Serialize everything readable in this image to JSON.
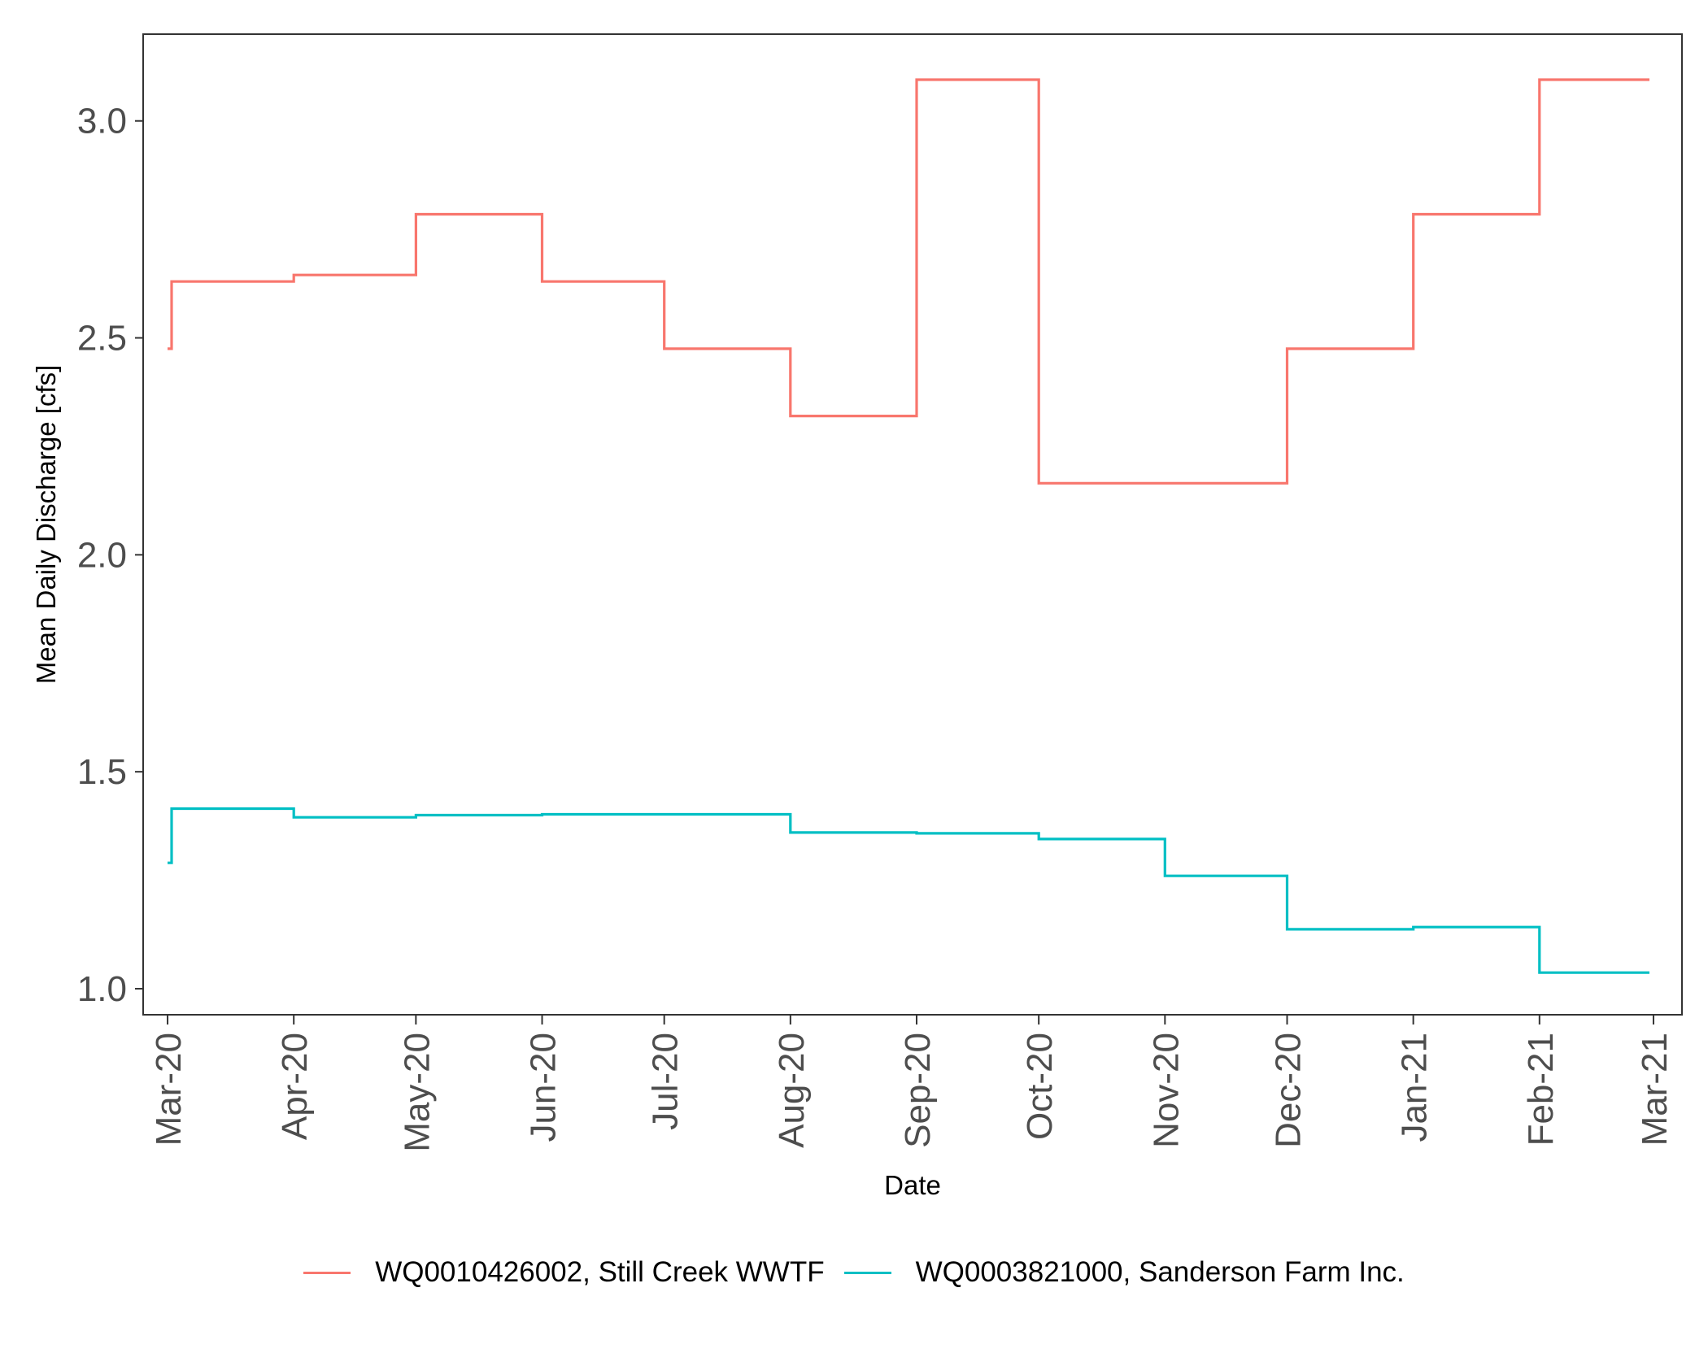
{
  "chart_data": {
    "type": "line",
    "step": true,
    "xlabel": "Date",
    "ylabel": "Mean Daily Discharge [cfs]",
    "x_ticks": [
      "Mar-20",
      "Apr-20",
      "May-20",
      "Jun-20",
      "Jul-20",
      "Aug-20",
      "Sep-20",
      "Oct-20",
      "Nov-20",
      "Dec-20",
      "Jan-21",
      "Feb-21",
      "Mar-21"
    ],
    "x_range": [
      "2020-02-24",
      "2021-03-08"
    ],
    "y_ticks": [
      "1.0",
      "1.5",
      "2.0",
      "2.5",
      "3.0"
    ],
    "ylim": [
      0.94,
      3.2
    ],
    "grid": false,
    "legend_position": "bottom",
    "series": [
      {
        "name": "WQ0010426002, Still Creek WWTF",
        "color": "#F8766D",
        "x": [
          "2020-03-01",
          "2020-03-02",
          "2020-04-01",
          "2020-05-01",
          "2020-06-01",
          "2020-07-01",
          "2020-08-01",
          "2020-09-01",
          "2020-10-01",
          "2020-11-01",
          "2020-12-01",
          "2021-01-01",
          "2021-02-01",
          "2021-02-28"
        ],
        "y": [
          2.475,
          2.63,
          2.645,
          2.785,
          2.63,
          2.475,
          2.32,
          3.095,
          2.165,
          2.165,
          2.475,
          2.785,
          3.095,
          3.095
        ]
      },
      {
        "name": "WQ0003821000, Sanderson Farm Inc.",
        "color": "#00BFC4",
        "x": [
          "2020-03-01",
          "2020-03-02",
          "2020-04-01",
          "2020-05-01",
          "2020-06-01",
          "2020-07-01",
          "2020-08-01",
          "2020-09-01",
          "2020-10-01",
          "2020-11-01",
          "2020-12-01",
          "2021-01-01",
          "2021-02-01",
          "2021-02-28"
        ],
        "y": [
          1.29,
          1.415,
          1.395,
          1.4,
          1.402,
          1.402,
          1.36,
          1.358,
          1.345,
          1.26,
          1.137,
          1.142,
          1.037,
          1.037
        ]
      }
    ]
  }
}
